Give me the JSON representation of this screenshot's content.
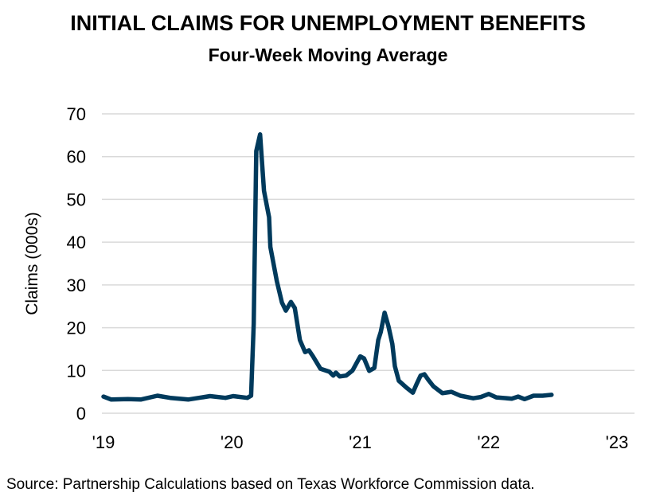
{
  "chart_data": {
    "type": "line",
    "title": "INITIAL CLAIMS FOR UNEMPLOYMENT BENEFITS",
    "subtitle": "Four-Week Moving Average",
    "xlabel": "",
    "ylabel": "Claims (000s)",
    "ylim": [
      0,
      70
    ],
    "xlim": [
      2019,
      2023
    ],
    "yticks": [
      "0",
      "10",
      "20",
      "30",
      "40",
      "50",
      "60",
      "70"
    ],
    "xticks": [
      "'19",
      "'20",
      "'21",
      "'22",
      "'23"
    ],
    "grid": "horizontal",
    "line_color": "#003A5C",
    "source": "Source: Partnership Calculations based on Texas Workforce Commission data.",
    "series": [
      {
        "x": [
          2019.0,
          2019.06,
          2019.19,
          2019.29,
          2019.42,
          2019.52,
          2019.66,
          2019.83,
          2019.95,
          2020.01,
          2020.12,
          2020.15,
          2020.17,
          2020.19,
          2020.22,
          2020.25,
          2020.29,
          2020.3,
          2020.35,
          2020.39,
          2020.42,
          2020.46,
          2020.49,
          2020.53,
          2020.57,
          2020.6,
          2020.63,
          2020.69,
          2020.76,
          2020.79,
          2020.81,
          2020.84,
          2020.89,
          2020.94,
          2021.0,
          2021.03,
          2021.07,
          2021.11,
          2021.14,
          2021.16,
          2021.19,
          2021.22,
          2021.25,
          2021.27,
          2021.3,
          2021.36,
          2021.41,
          2021.44,
          2021.47,
          2021.5,
          2021.53,
          2021.57,
          2021.64,
          2021.71,
          2021.78,
          2021.88,
          2021.94,
          2022.0,
          2022.06,
          2022.18,
          2022.23,
          2022.28,
          2022.35,
          2022.42,
          2022.49
        ],
        "y": [
          3.9,
          3.2,
          3.3,
          3.2,
          4.1,
          3.6,
          3.2,
          4.0,
          3.6,
          4.0,
          3.6,
          4.1,
          20.9,
          61.3,
          65.2,
          52.0,
          45.8,
          38.9,
          30.9,
          25.9,
          24.0,
          26.0,
          24.6,
          17.1,
          14.3,
          14.7,
          13.4,
          10.4,
          9.7,
          8.8,
          9.5,
          8.6,
          8.8,
          10.0,
          13.3,
          12.8,
          9.9,
          10.6,
          17.1,
          19.0,
          23.5,
          20.3,
          16.2,
          11.0,
          7.6,
          6.0,
          4.8,
          6.9,
          8.8,
          9.1,
          7.8,
          6.3,
          4.7,
          5.0,
          4.1,
          3.5,
          3.8,
          4.5,
          3.7,
          3.4,
          3.9,
          3.3,
          4.1,
          4.1,
          4.3
        ]
      }
    ]
  }
}
